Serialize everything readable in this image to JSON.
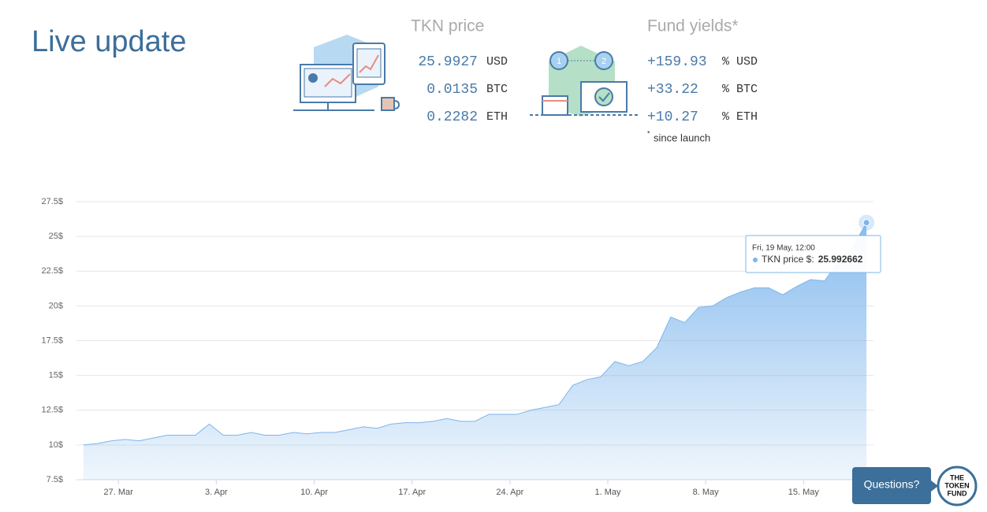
{
  "header": {
    "title": "Live update"
  },
  "tkn_price": {
    "title": "TKN price",
    "rows": [
      {
        "value": "25.9927",
        "unit": "USD"
      },
      {
        "value": "0.0135",
        "unit": "BTC"
      },
      {
        "value": "0.2282",
        "unit": "ETH"
      }
    ]
  },
  "fund_yields": {
    "title": "Fund yields*",
    "rows": [
      {
        "value": "+159.93",
        "unit": "% USD"
      },
      {
        "value": "+33.22",
        "unit": "% BTC"
      },
      {
        "value": "+10.27",
        "unit": "% ETH"
      }
    ],
    "footnote": {
      "mark": "*",
      "text": "since launch"
    }
  },
  "chart_data": {
    "type": "area",
    "x": [
      83.5,
      84.5,
      85.5,
      86.5,
      87.5,
      88.5,
      89.5,
      90.5,
      91.5,
      92.5,
      93.5,
      94.5,
      95.5,
      96.5,
      97.5,
      98.5,
      99.5,
      100.5,
      101.5,
      102.5,
      103.5,
      104.5,
      105.5,
      106.5,
      107.5,
      108.5,
      109.5,
      110.5,
      111.5,
      112.5,
      113.5,
      114.5,
      115.5,
      116.5,
      117.5,
      118.5,
      119.5,
      120.5,
      121.5,
      122.5,
      123.5,
      124.5,
      125.5,
      126.5,
      127.5,
      128.5,
      129.5,
      130.5,
      131.5,
      132.5,
      133.5,
      134.5,
      135.5,
      136.5,
      137.5,
      138.5,
      139.5
    ],
    "series": [
      {
        "color": "#7cb5ec",
        "values": [
          10.0,
          10.1,
          10.3,
          10.4,
          10.3,
          10.5,
          10.7,
          10.7,
          10.7,
          11.5,
          10.7,
          10.7,
          10.9,
          10.7,
          10.7,
          10.9,
          10.8,
          10.9,
          10.9,
          11.1,
          11.3,
          11.2,
          11.5,
          11.6,
          11.6,
          11.7,
          11.9,
          11.7,
          11.7,
          12.2,
          12.2,
          12.2,
          12.5,
          12.7,
          12.9,
          14.3,
          14.7,
          14.9,
          16.0,
          15.7,
          16.0,
          17.0,
          19.2,
          18.8,
          19.9,
          20.0,
          20.6,
          21.0,
          21.3,
          21.3,
          20.8,
          21.4,
          21.9,
          21.8,
          23.2,
          24.2,
          25.992662
        ]
      }
    ],
    "xlim": [
      83,
      140
    ],
    "xticks": [
      {
        "value": 86,
        "label": "27. Mar"
      },
      {
        "value": 93,
        "label": "3. Apr"
      },
      {
        "value": 100,
        "label": "10. Apr"
      },
      {
        "value": 107,
        "label": "17. Apr"
      },
      {
        "value": 114,
        "label": "24. Apr"
      },
      {
        "value": 121,
        "label": "1. May"
      },
      {
        "value": 128,
        "label": "8. May"
      },
      {
        "value": 135,
        "label": "15. May"
      }
    ],
    "ylim": [
      7.5,
      27.5
    ],
    "yticks": [
      {
        "value": 7.5,
        "label": "7.5$"
      },
      {
        "value": 10,
        "label": "10$"
      },
      {
        "value": 12.5,
        "label": "12.5$"
      },
      {
        "value": 15,
        "label": "15$"
      },
      {
        "value": 17.5,
        "label": "17.5$"
      },
      {
        "value": 20,
        "label": "20$"
      },
      {
        "value": 22.5,
        "label": "22.5$"
      },
      {
        "value": 25,
        "label": "25$"
      },
      {
        "value": 27.5,
        "label": "27.5$"
      }
    ],
    "grid": true,
    "tooltip": {
      "title": "Fri, 19 May, 12:00",
      "label": "TKN price $:"
    }
  },
  "chat": {
    "button": "Questions?",
    "logo": [
      "THE",
      "TOKEN",
      "FUND"
    ]
  }
}
